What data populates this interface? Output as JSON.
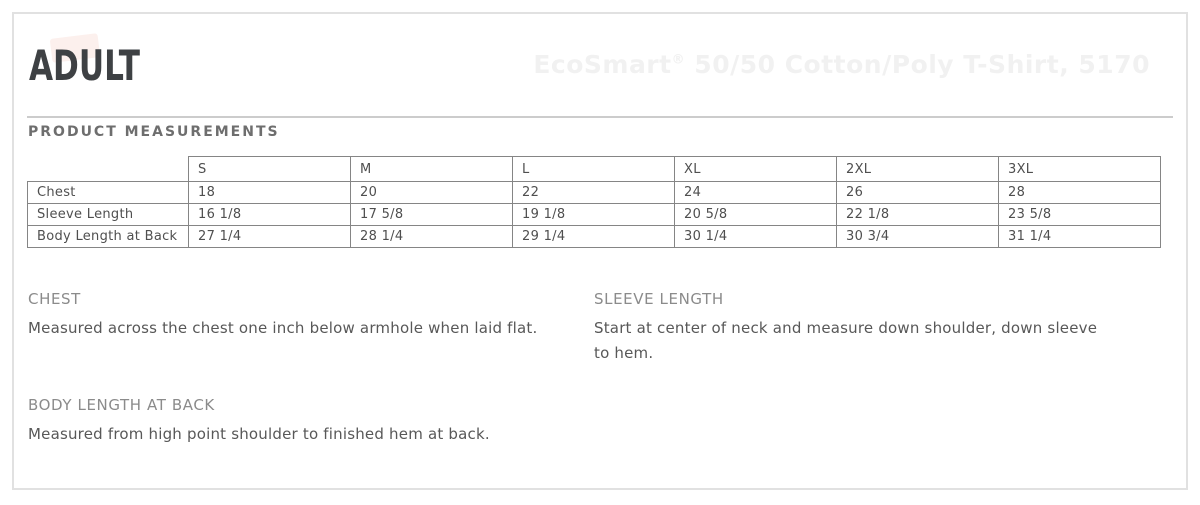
{
  "header": {
    "title": "ADULT",
    "product_title": {
      "brand": "EcoSmart",
      "reg": "®",
      "rest": " 50/50 Cotton/Poly T-Shirt, 5170"
    }
  },
  "measurements": {
    "heading": "PRODUCT MEASUREMENTS",
    "sizes": [
      "S",
      "M",
      "L",
      "XL",
      "2XL",
      "3XL"
    ],
    "rows": [
      {
        "label": "Chest",
        "values": [
          "18",
          "20",
          "22",
          "24",
          "26",
          "28"
        ]
      },
      {
        "label": "Sleeve Length",
        "values": [
          "16 1/8",
          "17 5/8",
          "19 1/8",
          "20 5/8",
          "22 1/8",
          "23 5/8"
        ]
      },
      {
        "label": "Body Length at Back",
        "values": [
          "27 1/4",
          "28 1/4",
          "29 1/4",
          "30 1/4",
          "30 3/4",
          "31 1/4"
        ]
      }
    ]
  },
  "definitions": {
    "chest": {
      "heading": "CHEST",
      "text": "Measured across the chest one inch below armhole when laid flat."
    },
    "sleeve": {
      "heading": "SLEEVE LENGTH",
      "text": "Start at center of neck and measure down shoulder, down sleeve to hem."
    },
    "body": {
      "heading": "BODY LENGTH AT BACK",
      "text": "Measured from high point shoulder to finished hem at back."
    }
  },
  "colors": {
    "frame_border": "#e1e1e1",
    "divider": "#cccccc",
    "title_text": "#3e4144",
    "heading_text": "#6e6e6e",
    "table_border": "#858585",
    "table_text": "#4f4f4f",
    "definition_heading": "#8b8b8b",
    "definition_text": "#585858",
    "watermark_text": "#f1f1f1",
    "brand_blob_pink": "#fcf0ed"
  }
}
